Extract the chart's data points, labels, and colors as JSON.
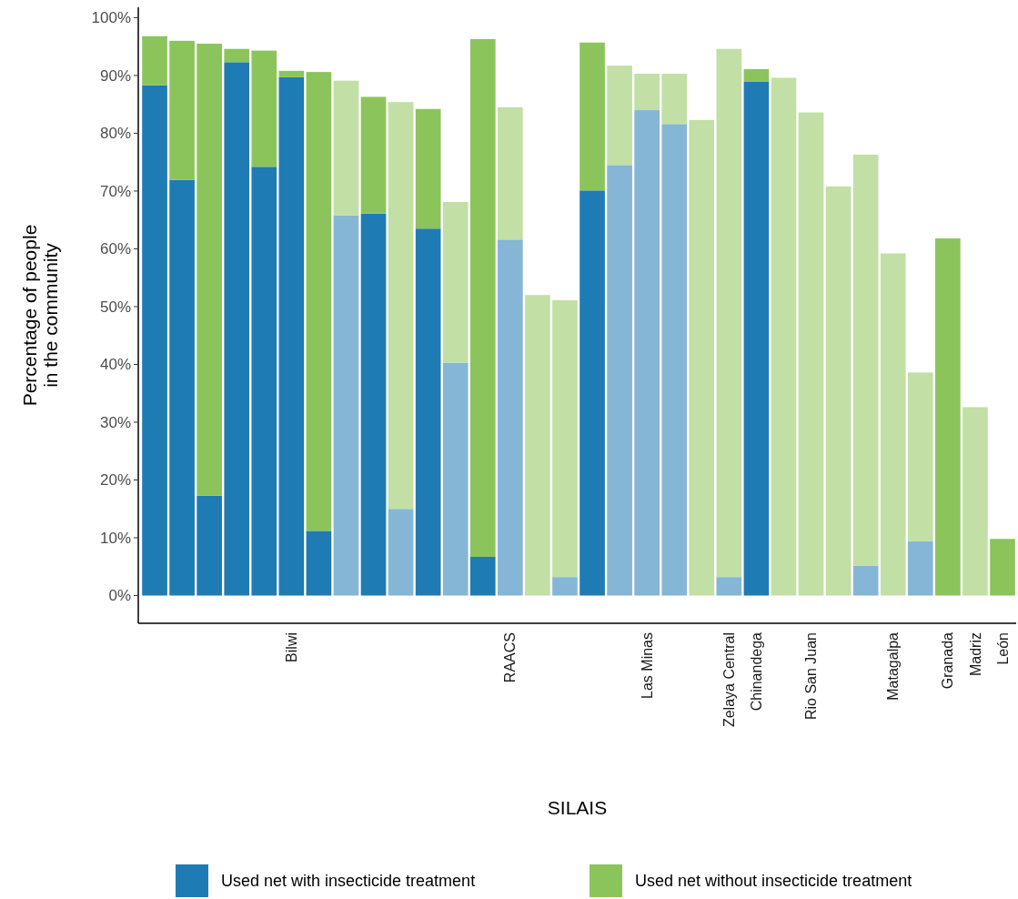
{
  "chart_data": {
    "type": "bar",
    "stacked": true,
    "xlabel": "SILAIS",
    "ylabel": "Percentage of people\nin the community",
    "legend": "bottom",
    "ylim": [
      -4.8,
      101.8
    ],
    "yticks": [
      {
        "value": 0,
        "label": "0%"
      },
      {
        "value": 10,
        "label": "10%"
      },
      {
        "value": 20,
        "label": "20%"
      },
      {
        "value": 30,
        "label": "30%"
      },
      {
        "value": 40,
        "label": "40%"
      },
      {
        "value": 50,
        "label": "50%"
      },
      {
        "value": 60,
        "label": "60%"
      },
      {
        "value": 70,
        "label": "70%"
      },
      {
        "value": 80,
        "label": "80%"
      },
      {
        "value": 90,
        "label": "90%"
      },
      {
        "value": 100,
        "label": "100%"
      }
    ],
    "categories": [
      null,
      null,
      null,
      null,
      null,
      "Bilwi",
      null,
      null,
      null,
      null,
      null,
      null,
      null,
      "RAACS",
      null,
      null,
      null,
      null,
      "Las Minas",
      null,
      null,
      "Zelaya Central",
      "Chinandega",
      null,
      "Rio San Juan",
      null,
      null,
      "Matagalpa",
      null,
      "Granada",
      "Madriz",
      "León"
    ],
    "series": [
      {
        "name": "Used net with insecticide treatment",
        "color": "#1f7bb4",
        "values": [
          88.3,
          71.9,
          17.3,
          92.3,
          74.2,
          89.7,
          11.2,
          65.8,
          66.1,
          15.0,
          63.5,
          40.3,
          6.7,
          61.6,
          null,
          3.2,
          70.1,
          74.5,
          84.0,
          81.6,
          null,
          3.2,
          88.9,
          null,
          null,
          null,
          5.2,
          null,
          9.4,
          null,
          null,
          null
        ],
        "colors": [
          "#1f7bb4",
          "#1f7bb4",
          "#1f7bb4",
          "#1f7bb4",
          "#1f7bb4",
          "#1f7bb4",
          "#1f7bb4",
          "#86b6d6",
          "#1f7bb4",
          "#86b6d6",
          "#1f7bb4",
          "#86b6d6",
          "#1f7bb4",
          "#86b6d6",
          null,
          "#86b6d6",
          "#1f7bb4",
          "#86b6d6",
          "#86b6d6",
          "#86b6d6",
          null,
          "#86b6d6",
          "#1f7bb4",
          null,
          null,
          null,
          "#86b6d6",
          null,
          "#86b6d6",
          null,
          null,
          null
        ]
      },
      {
        "name": "Used net without insecticide treatment",
        "color": "#8cc45c",
        "values": [
          8.5,
          24.1,
          78.2,
          2.3,
          20.1,
          1.1,
          79.4,
          23.3,
          20.2,
          70.4,
          20.7,
          27.8,
          89.6,
          22.9,
          52.0,
          47.9,
          25.6,
          17.2,
          6.3,
          8.7,
          82.3,
          91.4,
          2.2,
          89.6,
          83.6,
          70.8,
          71.1,
          59.2,
          29.2,
          61.8,
          32.6,
          9.8
        ],
        "colors": [
          "#8cc45c",
          "#8cc45c",
          "#8cc45c",
          "#8cc45c",
          "#8cc45c",
          "#8cc45c",
          "#8cc45c",
          "#c2dfa5",
          "#8cc45c",
          "#c2dfa5",
          "#8cc45c",
          "#c2dfa5",
          "#8cc45c",
          "#c2dfa5",
          "#c2dfa5",
          "#c2dfa5",
          "#8cc45c",
          "#c2dfa5",
          "#c2dfa5",
          "#c2dfa5",
          "#c2dfa5",
          "#c2dfa5",
          "#8cc45c",
          "#c2dfa5",
          "#c2dfa5",
          "#c2dfa5",
          "#c2dfa5",
          "#c2dfa5",
          "#c2dfa5",
          "#8cc45c",
          "#c2dfa5",
          "#8cc45c"
        ]
      }
    ]
  }
}
